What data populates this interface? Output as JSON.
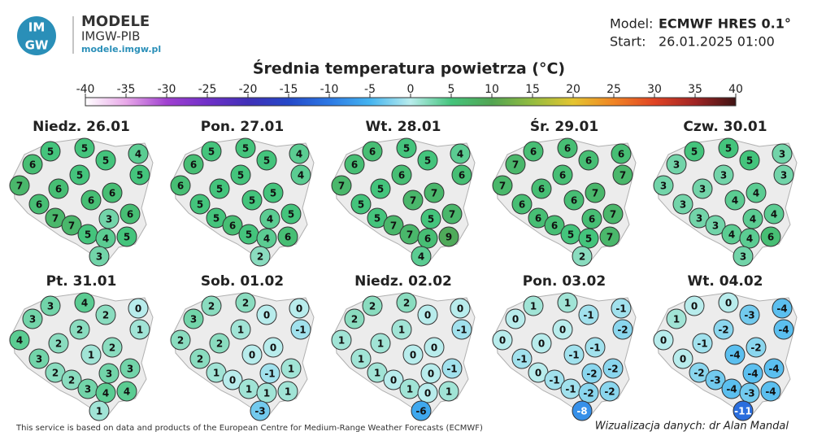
{
  "header": {
    "logo_text": [
      "IM",
      "GW"
    ],
    "brand": "MODELE",
    "org": "IMGW-PIB",
    "url": "modele.imgw.pl",
    "model_label": "Model:",
    "model": "ECMWF HRES 0.1°",
    "start_label": "Start:",
    "start": "26.01.2025 01:00"
  },
  "title": "Średnia temperatura powietrza (°C)",
  "colorbar": {
    "ticks": [
      -40,
      -35,
      -30,
      -25,
      -20,
      -15,
      -10,
      -5,
      0,
      5,
      10,
      15,
      20,
      25,
      30,
      35,
      40
    ],
    "colors": [
      "#ffffff",
      "#e8a8e8",
      "#a040d0",
      "#7030c8",
      "#4030b8",
      "#2448c8",
      "#2c78e4",
      "#44b4f0",
      "#b8ecec",
      "#44c47c",
      "#52a452",
      "#94bc40",
      "#e4c430",
      "#f08424",
      "#e04424",
      "#a02424",
      "#401414"
    ]
  },
  "panels": [
    {
      "label": "Niedz. 26.01",
      "values": [
        5,
        5,
        6,
        5,
        4,
        5,
        5,
        7,
        6,
        6,
        6,
        6,
        7,
        6,
        3,
        7,
        5,
        4,
        5,
        3
      ]
    },
    {
      "label": "Pon. 27.01",
      "values": [
        5,
        5,
        6,
        5,
        4,
        4,
        5,
        6,
        5,
        5,
        5,
        5,
        5,
        5,
        4,
        6,
        5,
        4,
        6,
        2
      ]
    },
    {
      "label": "Wt. 28.01",
      "values": [
        6,
        5,
        6,
        5,
        4,
        6,
        6,
        7,
        5,
        7,
        7,
        5,
        5,
        7,
        5,
        7,
        7,
        6,
        9,
        4
      ]
    },
    {
      "label": "Śr. 29.01",
      "values": [
        6,
        6,
        7,
        6,
        6,
        7,
        6,
        7,
        6,
        7,
        6,
        6,
        6,
        7,
        6,
        6,
        5,
        5,
        7,
        2
      ]
    },
    {
      "label": "Czw. 30.01",
      "values": [
        5,
        5,
        3,
        5,
        3,
        3,
        3,
        3,
        3,
        4,
        4,
        3,
        3,
        4,
        4,
        3,
        4,
        4,
        6,
        3
      ]
    },
    {
      "label": "Pt. 31.01",
      "values": [
        3,
        4,
        3,
        2,
        0,
        1,
        2,
        4,
        2,
        2,
        1,
        3,
        2,
        3,
        3,
        2,
        3,
        4,
        4,
        1
      ]
    },
    {
      "label": "Sob. 01.02",
      "values": [
        2,
        2,
        3,
        0,
        0,
        -1,
        1,
        2,
        2,
        0,
        0,
        2,
        1,
        1,
        -1,
        0,
        1,
        1,
        1,
        -3
      ]
    },
    {
      "label": "Niedz. 02.02",
      "values": [
        2,
        2,
        2,
        0,
        0,
        -1,
        1,
        1,
        1,
        0,
        0,
        1,
        1,
        -1,
        0,
        0,
        1,
        0,
        1,
        -6
      ]
    },
    {
      "label": "Pon. 03.02",
      "values": [
        1,
        1,
        0,
        -1,
        -1,
        -2,
        0,
        0,
        0,
        -1,
        -1,
        -1,
        0,
        -2,
        -2,
        -1,
        -1,
        -2,
        -2,
        -8
      ]
    },
    {
      "label": "Wt. 04.02",
      "values": [
        0,
        0,
        1,
        -3,
        -4,
        -4,
        -2,
        0,
        -1,
        -2,
        -4,
        0,
        -2,
        -4,
        -4,
        -3,
        -4,
        -3,
        -4,
        -11
      ]
    }
  ],
  "footer": {
    "source": "This service is based on data and products of the European Centre for Medium-Range Weather Forecasts (ECMWF)",
    "credit": "Wizualizacja danych: dr Alan Mandal"
  }
}
